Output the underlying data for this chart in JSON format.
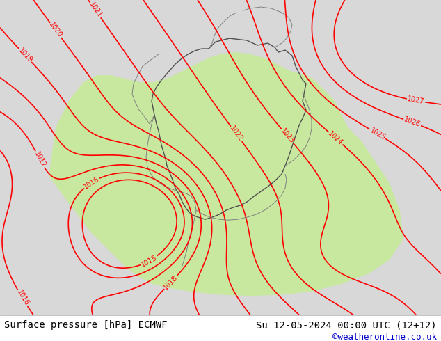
{
  "background_color": "#ffffff",
  "outer_land_color": "#d8d8d8",
  "green_color": "#c8e8a0",
  "contour_color": "#ff0000",
  "border_color": "#404040",
  "title_left": "Surface pressure [hPa] ECMWF",
  "title_right": "Su 12-05-2024 00:00 UTC (12+12)",
  "credit": "©weatheronline.co.uk",
  "credit_color": "#0000cc",
  "title_color": "#000000",
  "title_fontsize": 10,
  "credit_fontsize": 9,
  "bottom_bar_color": "#ffffff",
  "label_fontsize": 7,
  "contour_linewidth": 1.2
}
